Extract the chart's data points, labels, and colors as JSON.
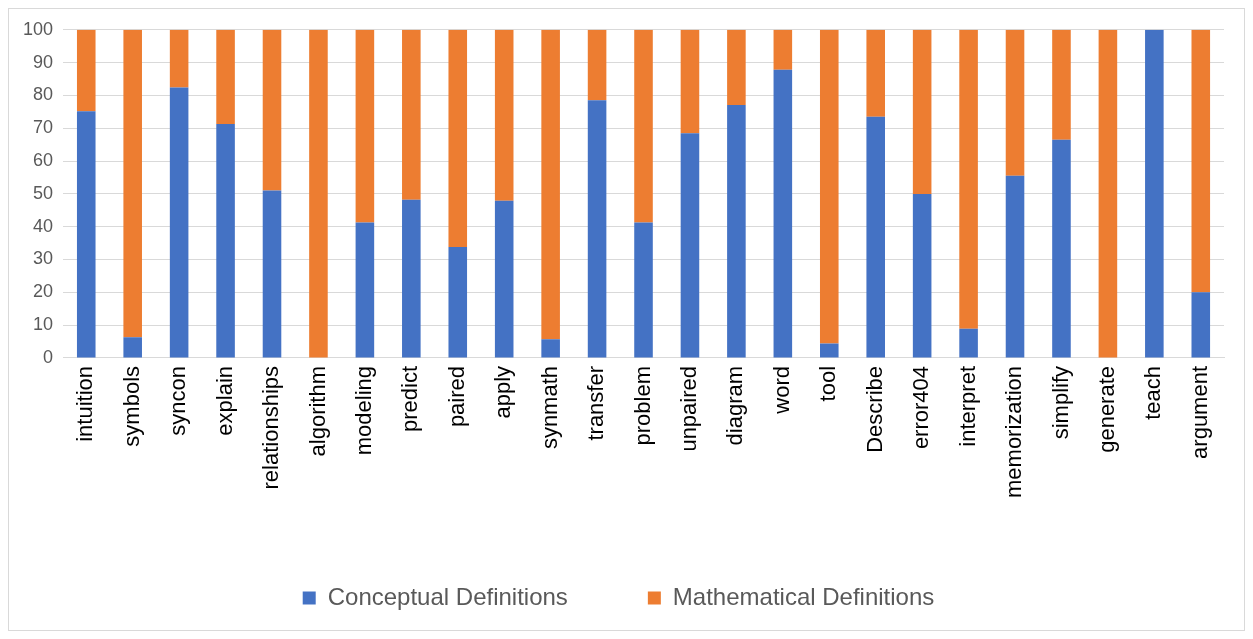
{
  "chart_data": {
    "type": "bar",
    "stacked": true,
    "categories": [
      "intuition",
      "symbols",
      "syncon",
      "explain",
      "relationships",
      "algorithm",
      "modeling",
      "predict",
      "paired",
      "apply",
      "synmath",
      "transfer",
      "problem",
      "unpaired",
      "diagram",
      "word",
      "tool",
      "Describe",
      "error404",
      "interpret",
      "memorization",
      "simplify",
      "generate",
      "teach",
      "argument"
    ],
    "series": [
      {
        "name": "Conceptual Definitions",
        "color": "#4472c4",
        "values": [
          75.2,
          6.3,
          82.4,
          71.3,
          51,
          0,
          41.3,
          48.2,
          33.8,
          47.9,
          5.7,
          78.5,
          41.3,
          68.5,
          77.1,
          87.8,
          4.4,
          73.5,
          50,
          8.9,
          55.5,
          66.5,
          0,
          100,
          20
        ]
      },
      {
        "name": "Mathematical Definitions",
        "color": "#ed7d31",
        "values": [
          24.8,
          93.7,
          17.6,
          28.7,
          49,
          100,
          58.7,
          51.8,
          66.2,
          52.1,
          94.3,
          21.5,
          58.7,
          31.5,
          22.9,
          12.2,
          95.6,
          26.5,
          50,
          91.1,
          44.5,
          33.5,
          100,
          0,
          80
        ]
      }
    ],
    "ylim": [
      0,
      100
    ],
    "yticks": [
      0,
      10,
      20,
      30,
      40,
      50,
      60,
      70,
      80,
      90,
      100
    ],
    "grid": "y",
    "legend": "bottom"
  }
}
